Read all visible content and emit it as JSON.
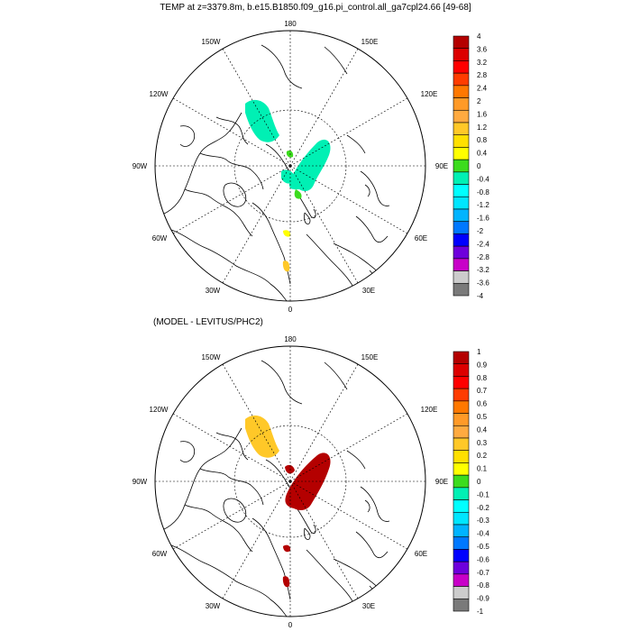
{
  "figure": {
    "title": "TEMP at z=3379.8m, b.e15.B1850.f09_g16.pi_control.all_ga7cpl24.66 [49-68]",
    "subtitle": "(MODEL - LEVITUS/PHC2)"
  },
  "longitude_labels": [
    "180",
    "150E",
    "120E",
    "90E",
    "60E",
    "30E",
    "0",
    "30W",
    "60W",
    "90W",
    "120W",
    "150W"
  ],
  "panels": [
    {
      "id": "model",
      "colorbar": {
        "labels": [
          "4",
          "3.6",
          "3.2",
          "2.8",
          "2.4",
          "2",
          "1.6",
          "1.2",
          "0.8",
          "0.4",
          "0",
          "-0.4",
          "-0.8",
          "-1.2",
          "-1.6",
          "-2",
          "-2.4",
          "-2.8",
          "-3.2",
          "-3.6",
          "-4"
        ],
        "colors": [
          "#b40000",
          "#dc0000",
          "#ff0000",
          "#ff3c00",
          "#ff7800",
          "#ff9a28",
          "#ffaa40",
          "#ffc828",
          "#ffe000",
          "#ffff00",
          "#3cdc1e",
          "#00f0b4",
          "#00ffff",
          "#00e6ff",
          "#00b4ff",
          "#0078ff",
          "#0000ff",
          "#6e00dc",
          "#c800c8",
          "#cccccc",
          "#7a7a7a"
        ]
      }
    },
    {
      "id": "difference",
      "colorbar": {
        "labels": [
          "1",
          "0.9",
          "0.8",
          "0.7",
          "0.6",
          "0.5",
          "0.4",
          "0.3",
          "0.2",
          "0.1",
          "0",
          "-0.1",
          "-0.2",
          "-0.3",
          "-0.4",
          "-0.5",
          "-0.6",
          "-0.7",
          "-0.8",
          "-0.9",
          "-1"
        ],
        "colors": [
          "#b40000",
          "#dc0000",
          "#ff0000",
          "#ff3c00",
          "#ff7800",
          "#ff9a28",
          "#ffaa40",
          "#ffc828",
          "#ffe000",
          "#ffff00",
          "#3cdc1e",
          "#00f0b4",
          "#00ffff",
          "#00e6ff",
          "#00b4ff",
          "#0078ff",
          "#0000ff",
          "#6e00dc",
          "#c800c8",
          "#cccccc",
          "#7a7a7a"
        ]
      }
    }
  ]
}
